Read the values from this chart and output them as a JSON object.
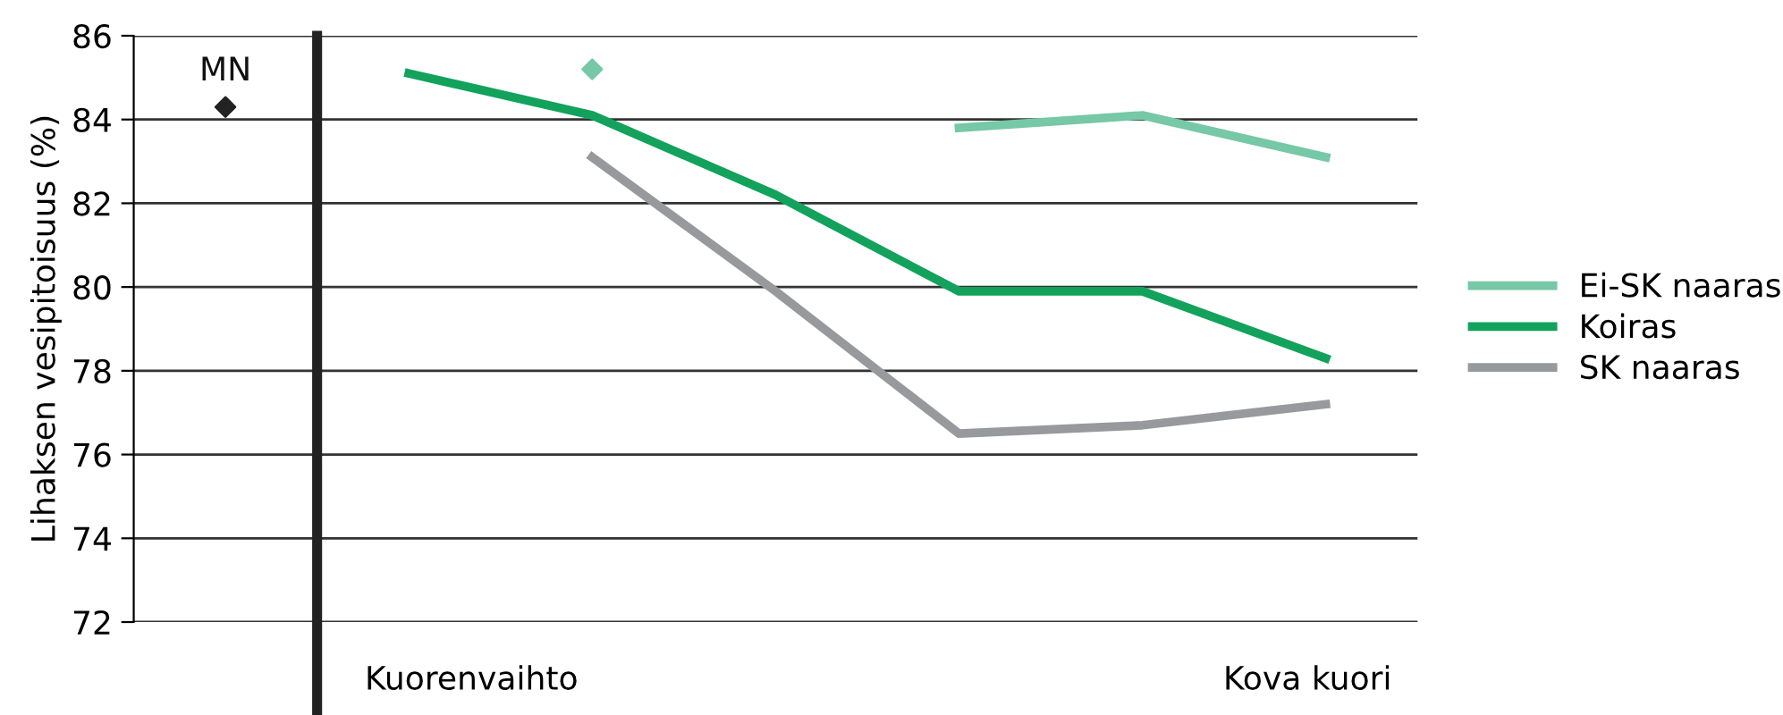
{
  "chart_data": {
    "type": "line",
    "ylabel": "Lihaksen vesipitoisuus (%)",
    "categories": [
      null,
      null,
      null,
      null,
      null,
      null,
      null
    ],
    "ylim": [
      72,
      86
    ],
    "yticks": [
      72,
      74,
      76,
      78,
      80,
      82,
      84,
      86
    ],
    "tick_labels": "y",
    "grid": "y",
    "legend": "right",
    "marker": "none",
    "line_style": "solid",
    "series": [
      {
        "name": "Ei-SK naaras",
        "color": "#76c8a6",
        "values": [
          null,
          null,
          null,
          null,
          83.8,
          84.1,
          83.1
        ]
      },
      {
        "name": "Koiras",
        "color": "#12a25c",
        "values": [
          null,
          85.1,
          84.1,
          82.2,
          79.9,
          79.9,
          78.3
        ]
      },
      {
        "name": "SK naaras",
        "color": "#98999c",
        "values": [
          null,
          null,
          83.1,
          79.9,
          76.5,
          76.7,
          77.2
        ]
      },
      {
        "type": "scatter",
        "marker": "diamond",
        "color": "#76c8a6",
        "values": [
          null,
          null,
          85.2,
          null,
          null,
          null,
          null
        ]
      },
      {
        "type": "scatter",
        "marker": "diamond",
        "name": "MN",
        "color": "#222222",
        "values": [
          84.3,
          null,
          null,
          null,
          null,
          null,
          null
        ]
      }
    ],
    "annotations": [
      "Kuorenvaihto",
      "Kova kuori"
    ]
  }
}
